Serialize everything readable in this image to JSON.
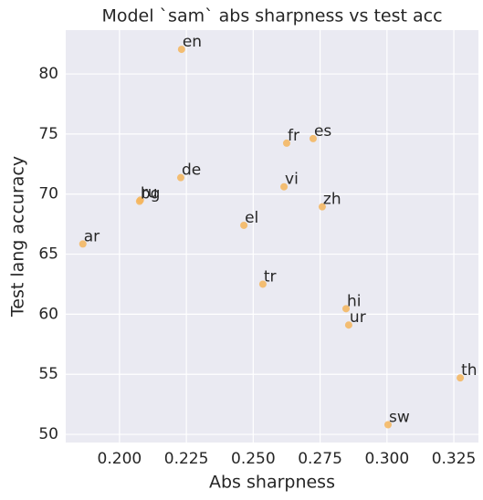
{
  "chart_data": {
    "type": "scatter",
    "title": "Model `sam` abs sharpness vs test acc",
    "xlabel": "Abs sharpness",
    "ylabel": "Test lang accuracy",
    "labels": [
      "en",
      "fr",
      "es",
      "de",
      "vi",
      "zh",
      "ru",
      "bg",
      "el",
      "ar",
      "tr",
      "hi",
      "ur",
      "th",
      "sw"
    ],
    "x": [
      0.2232,
      0.2625,
      0.2724,
      0.2229,
      0.2615,
      0.2758,
      0.2078,
      0.2075,
      0.2465,
      0.1863,
      0.2536,
      0.2847,
      0.2857,
      0.3274,
      0.3004
    ],
    "values": [
      82.05,
      74.24,
      74.62,
      71.37,
      70.61,
      68.94,
      69.5,
      69.4,
      67.4,
      65.85,
      62.5,
      60.46,
      59.1,
      54.7,
      50.8
    ],
    "color": "#f4b55c",
    "xlim": [
      0.1799,
      0.3342
    ],
    "xticks": [
      {
        "value": 0.2,
        "label": "0.200"
      },
      {
        "value": 0.225,
        "label": "0.225"
      },
      {
        "value": 0.25,
        "label": "0.250"
      },
      {
        "value": 0.275,
        "label": "0.275"
      },
      {
        "value": 0.3,
        "label": "0.300"
      },
      {
        "value": 0.325,
        "label": "0.325"
      }
    ],
    "ylim": [
      49.32,
      83.65
    ],
    "yticks": [
      50,
      55,
      60,
      65,
      70,
      75,
      80
    ],
    "grid": true
  }
}
